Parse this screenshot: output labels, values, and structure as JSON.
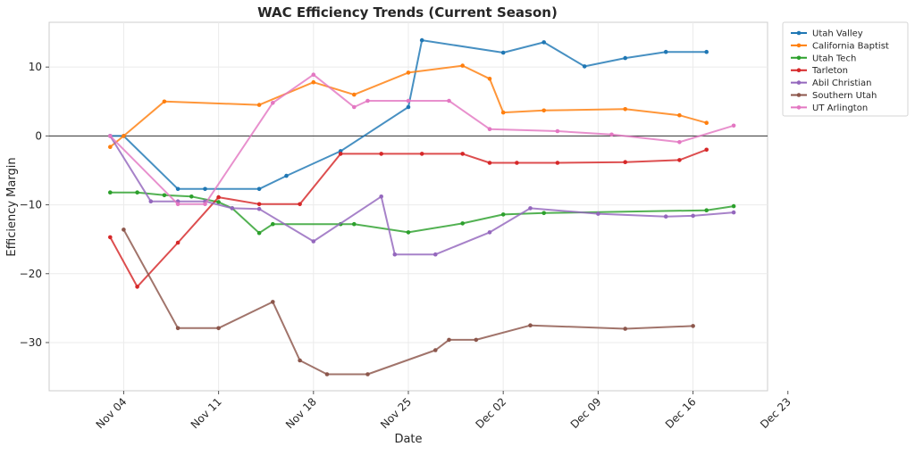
{
  "chart_data": {
    "type": "line",
    "title": "WAC Efficiency Trends (Current Season)",
    "xlabel": "Date",
    "ylabel": "Efficiency Margin",
    "xlim_day": [
      -2.5,
      50.5
    ],
    "ylim": [
      -37,
      16.5
    ],
    "grid": true,
    "zero_line": 0,
    "legend_position": "outside-top-right",
    "x_ticks": [
      {
        "day": 3,
        "label": "Nov 04"
      },
      {
        "day": 10,
        "label": "Nov 11"
      },
      {
        "day": 17,
        "label": "Nov 18"
      },
      {
        "day": 24,
        "label": "Nov 25"
      },
      {
        "day": 31,
        "label": "Dec 02"
      },
      {
        "day": 38,
        "label": "Dec 09"
      },
      {
        "day": 45,
        "label": "Dec 16"
      },
      {
        "day": 52,
        "label": "Dec 23"
      }
    ],
    "y_ticks": [
      {
        "value": 10,
        "label": "10"
      },
      {
        "value": 0,
        "label": "0"
      },
      {
        "value": -10,
        "label": "−10"
      },
      {
        "value": -20,
        "label": "−20"
      },
      {
        "value": -30,
        "label": "−30"
      }
    ],
    "series": [
      {
        "name": "Utah Valley",
        "color": "#1f77b4",
        "points": [
          [
            2,
            0
          ],
          [
            3,
            0
          ],
          [
            7,
            -7.7
          ],
          [
            9,
            -7.7
          ],
          [
            13,
            -7.7
          ],
          [
            15,
            -5.8
          ],
          [
            19,
            -2.2
          ],
          [
            24,
            4.2
          ],
          [
            25,
            13.9
          ],
          [
            31,
            12.1
          ],
          [
            34,
            13.6
          ],
          [
            37,
            10.1
          ],
          [
            40,
            11.3
          ],
          [
            43,
            12.2
          ],
          [
            46,
            12.2
          ]
        ]
      },
      {
        "name": "California Baptist",
        "color": "#ff7f0e",
        "points": [
          [
            2,
            -1.6
          ],
          [
            3,
            0
          ],
          [
            6,
            5
          ],
          [
            13,
            4.5
          ],
          [
            17,
            7.8
          ],
          [
            20,
            6
          ],
          [
            24,
            9.2
          ],
          [
            28,
            10.2
          ],
          [
            30,
            8.3
          ],
          [
            31,
            3.4
          ],
          [
            34,
            3.7
          ],
          [
            40,
            3.9
          ],
          [
            44,
            3
          ],
          [
            46,
            1.9
          ]
        ]
      },
      {
        "name": "Utah Tech",
        "color": "#2ca02c",
        "points": [
          [
            2,
            -8.2
          ],
          [
            4,
            -8.2
          ],
          [
            6,
            -8.6
          ],
          [
            8,
            -8.8
          ],
          [
            10,
            -9.6
          ],
          [
            11,
            -10.5
          ],
          [
            13,
            -14.1
          ],
          [
            14,
            -12.8
          ],
          [
            19,
            -12.8
          ],
          [
            20,
            -12.8
          ],
          [
            24,
            -14
          ],
          [
            28,
            -12.7
          ],
          [
            31,
            -11.4
          ],
          [
            34,
            -11.2
          ],
          [
            46,
            -10.8
          ],
          [
            48,
            -10.2
          ]
        ]
      },
      {
        "name": "Tarleton",
        "color": "#d62728",
        "points": [
          [
            2,
            -14.7
          ],
          [
            4,
            -21.9
          ],
          [
            7,
            -15.5
          ],
          [
            10,
            -8.9
          ],
          [
            13,
            -9.9
          ],
          [
            16,
            -9.9
          ],
          [
            19,
            -2.6
          ],
          [
            22,
            -2.6
          ],
          [
            25,
            -2.6
          ],
          [
            28,
            -2.6
          ],
          [
            30,
            -3.9
          ],
          [
            32,
            -3.9
          ],
          [
            35,
            -3.9
          ],
          [
            40,
            -3.8
          ],
          [
            44,
            -3.5
          ],
          [
            46,
            -2
          ]
        ]
      },
      {
        "name": "Abil Christian",
        "color": "#9467bd",
        "points": [
          [
            2,
            0
          ],
          [
            5,
            -9.5
          ],
          [
            7,
            -9.5
          ],
          [
            9,
            -9.5
          ],
          [
            11,
            -10.5
          ],
          [
            13,
            -10.6
          ],
          [
            17,
            -15.3
          ],
          [
            22,
            -8.8
          ],
          [
            23,
            -17.2
          ],
          [
            26,
            -17.2
          ],
          [
            30,
            -14
          ],
          [
            33,
            -10.5
          ],
          [
            38,
            -11.3
          ],
          [
            43,
            -11.7
          ],
          [
            45,
            -11.6
          ],
          [
            48,
            -11.1
          ]
        ]
      },
      {
        "name": "Southern Utah",
        "color": "#8c564b",
        "points": [
          [
            3,
            -13.6
          ],
          [
            7,
            -27.9
          ],
          [
            10,
            -27.9
          ],
          [
            14,
            -24.1
          ],
          [
            16,
            -32.6
          ],
          [
            18,
            -34.6
          ],
          [
            21,
            -34.6
          ],
          [
            26,
            -31.1
          ],
          [
            27,
            -29.6
          ],
          [
            29,
            -29.6
          ],
          [
            33,
            -27.5
          ],
          [
            40,
            -28
          ],
          [
            45,
            -27.6
          ]
        ]
      },
      {
        "name": "UT Arlington",
        "color": "#e377c2",
        "points": [
          [
            2,
            0
          ],
          [
            7,
            -9.9
          ],
          [
            9,
            -9.9
          ],
          [
            14,
            4.8
          ],
          [
            17,
            8.9
          ],
          [
            20,
            4.2
          ],
          [
            21,
            5.1
          ],
          [
            24,
            5.1
          ],
          [
            27,
            5.1
          ],
          [
            30,
            1
          ],
          [
            35,
            0.7
          ],
          [
            39,
            0.2
          ],
          [
            44,
            -0.9
          ],
          [
            48,
            1.5
          ]
        ]
      }
    ]
  }
}
